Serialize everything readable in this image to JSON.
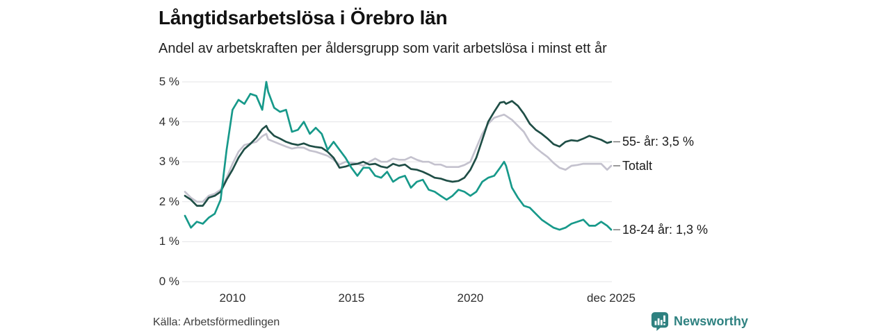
{
  "header": {
    "title": "Långtidsarbetslösa i Örebro län",
    "subtitle": "Andel av arbetskraften per åldersgrupp som varit arbetslösa i minst ett år"
  },
  "source": {
    "label": "Källa: Arbetsförmedlingen"
  },
  "branding": {
    "name": "Newsworthy",
    "color": "#2e8180",
    "icon": "bar-chart-speech-bubble-icon"
  },
  "chart_data": {
    "type": "line",
    "title": "Långtidsarbetslösa i Örebro län",
    "subtitle": "Andel av arbetskraften per åldersgrupp som varit arbetslösa i minst ett år",
    "source": "Källa: Arbetsförmedlingen",
    "xlabel": "",
    "ylabel": "",
    "x_unit": "decimal_year_monthly",
    "xlim": [
      2008.0,
      2025.95
    ],
    "ylim": [
      0,
      5
    ],
    "grid": "horizontal",
    "legend_position": "end-of-line-labels",
    "grid_color": "#e3e3e6",
    "yticks": [
      {
        "value": 0,
        "label": "0 %"
      },
      {
        "value": 1,
        "label": "1 %"
      },
      {
        "value": 2,
        "label": "2 %"
      },
      {
        "value": 3,
        "label": "3 %"
      },
      {
        "value": 4,
        "label": "4 %"
      },
      {
        "value": 5,
        "label": "5 %"
      }
    ],
    "xticks": [
      {
        "value": 2010,
        "label": "2010"
      },
      {
        "value": 2015,
        "label": "2015"
      },
      {
        "value": 2020,
        "label": "2020"
      },
      {
        "value": 2025.92,
        "label": "dec 2025"
      }
    ],
    "x": [
      2008.0,
      2008.25,
      2008.5,
      2008.75,
      2009.0,
      2009.25,
      2009.5,
      2009.75,
      2010.0,
      2010.25,
      2010.5,
      2010.75,
      2011.0,
      2011.25,
      2011.42,
      2011.5,
      2011.75,
      2012.0,
      2012.25,
      2012.5,
      2012.75,
      2013.0,
      2013.25,
      2013.5,
      2013.75,
      2014.0,
      2014.25,
      2014.5,
      2014.75,
      2015.0,
      2015.25,
      2015.5,
      2015.75,
      2016.0,
      2016.25,
      2016.5,
      2016.75,
      2017.0,
      2017.25,
      2017.5,
      2017.75,
      2018.0,
      2018.25,
      2018.5,
      2018.75,
      2019.0,
      2019.25,
      2019.5,
      2019.75,
      2020.0,
      2020.25,
      2020.5,
      2020.75,
      2021.0,
      2021.25,
      2021.42,
      2021.5,
      2021.75,
      2022.0,
      2022.25,
      2022.5,
      2022.75,
      2023.0,
      2023.25,
      2023.5,
      2023.75,
      2024.0,
      2024.25,
      2024.5,
      2024.75,
      2025.0,
      2025.25,
      2025.5,
      2025.75,
      2025.92
    ],
    "series": [
      {
        "name": "Totalt",
        "end_label": "Totalt",
        "end_value_label": null,
        "color": "#c4c2ce",
        "values": [
          2.25,
          2.1,
          2.0,
          2.0,
          2.15,
          2.2,
          2.3,
          2.6,
          2.95,
          3.25,
          3.42,
          3.46,
          3.5,
          3.64,
          3.7,
          3.56,
          3.5,
          3.44,
          3.38,
          3.33,
          3.36,
          3.35,
          3.28,
          3.25,
          3.2,
          3.15,
          3.05,
          2.93,
          3.0,
          2.98,
          2.95,
          2.9,
          3.0,
          3.08,
          3.0,
          3.0,
          3.08,
          3.05,
          3.05,
          3.12,
          3.05,
          3.0,
          3.0,
          2.93,
          2.93,
          2.87,
          2.87,
          2.87,
          2.92,
          3.0,
          3.35,
          3.7,
          3.95,
          4.1,
          4.15,
          4.18,
          4.15,
          4.05,
          3.9,
          3.75,
          3.5,
          3.35,
          3.23,
          3.12,
          2.97,
          2.85,
          2.8,
          2.9,
          2.92,
          2.95,
          2.95,
          2.95,
          2.95,
          2.8,
          2.9
        ]
      },
      {
        "name": "55- år",
        "end_label": "55- år: 3,5 %",
        "end_value_label": "3,5 %",
        "color": "#1f4e46",
        "values": [
          2.15,
          2.05,
          1.9,
          1.9,
          2.1,
          2.15,
          2.25,
          2.55,
          2.8,
          3.1,
          3.32,
          3.45,
          3.6,
          3.82,
          3.9,
          3.8,
          3.65,
          3.58,
          3.5,
          3.45,
          3.42,
          3.46,
          3.4,
          3.37,
          3.35,
          3.25,
          3.1,
          2.85,
          2.88,
          2.93,
          2.95,
          3.0,
          2.93,
          2.95,
          2.88,
          2.85,
          2.95,
          2.9,
          2.93,
          2.82,
          2.8,
          2.75,
          2.68,
          2.6,
          2.58,
          2.53,
          2.5,
          2.52,
          2.6,
          2.8,
          3.1,
          3.55,
          4.0,
          4.25,
          4.48,
          4.5,
          4.45,
          4.52,
          4.4,
          4.2,
          3.95,
          3.8,
          3.7,
          3.58,
          3.44,
          3.38,
          3.5,
          3.54,
          3.52,
          3.58,
          3.65,
          3.6,
          3.55,
          3.47,
          3.5
        ]
      },
      {
        "name": "18-24 år",
        "end_label": "18-24 år: 1,3 %",
        "end_value_label": "1,3 %",
        "color": "#17998a",
        "values": [
          1.65,
          1.35,
          1.5,
          1.45,
          1.6,
          1.7,
          2.05,
          3.3,
          4.3,
          4.55,
          4.45,
          4.7,
          4.65,
          4.3,
          5.0,
          4.75,
          4.35,
          4.25,
          4.3,
          3.75,
          3.8,
          4.0,
          3.7,
          3.85,
          3.7,
          3.3,
          3.5,
          3.3,
          3.1,
          2.85,
          2.65,
          2.85,
          2.85,
          2.65,
          2.6,
          2.75,
          2.5,
          2.6,
          2.65,
          2.35,
          2.5,
          2.55,
          2.3,
          2.25,
          2.15,
          2.05,
          2.15,
          2.3,
          2.25,
          2.15,
          2.25,
          2.5,
          2.6,
          2.65,
          2.85,
          3.0,
          2.9,
          2.35,
          2.1,
          1.9,
          1.85,
          1.7,
          1.55,
          1.45,
          1.35,
          1.3,
          1.35,
          1.45,
          1.5,
          1.55,
          1.4,
          1.4,
          1.5,
          1.4,
          1.3
        ]
      }
    ]
  }
}
